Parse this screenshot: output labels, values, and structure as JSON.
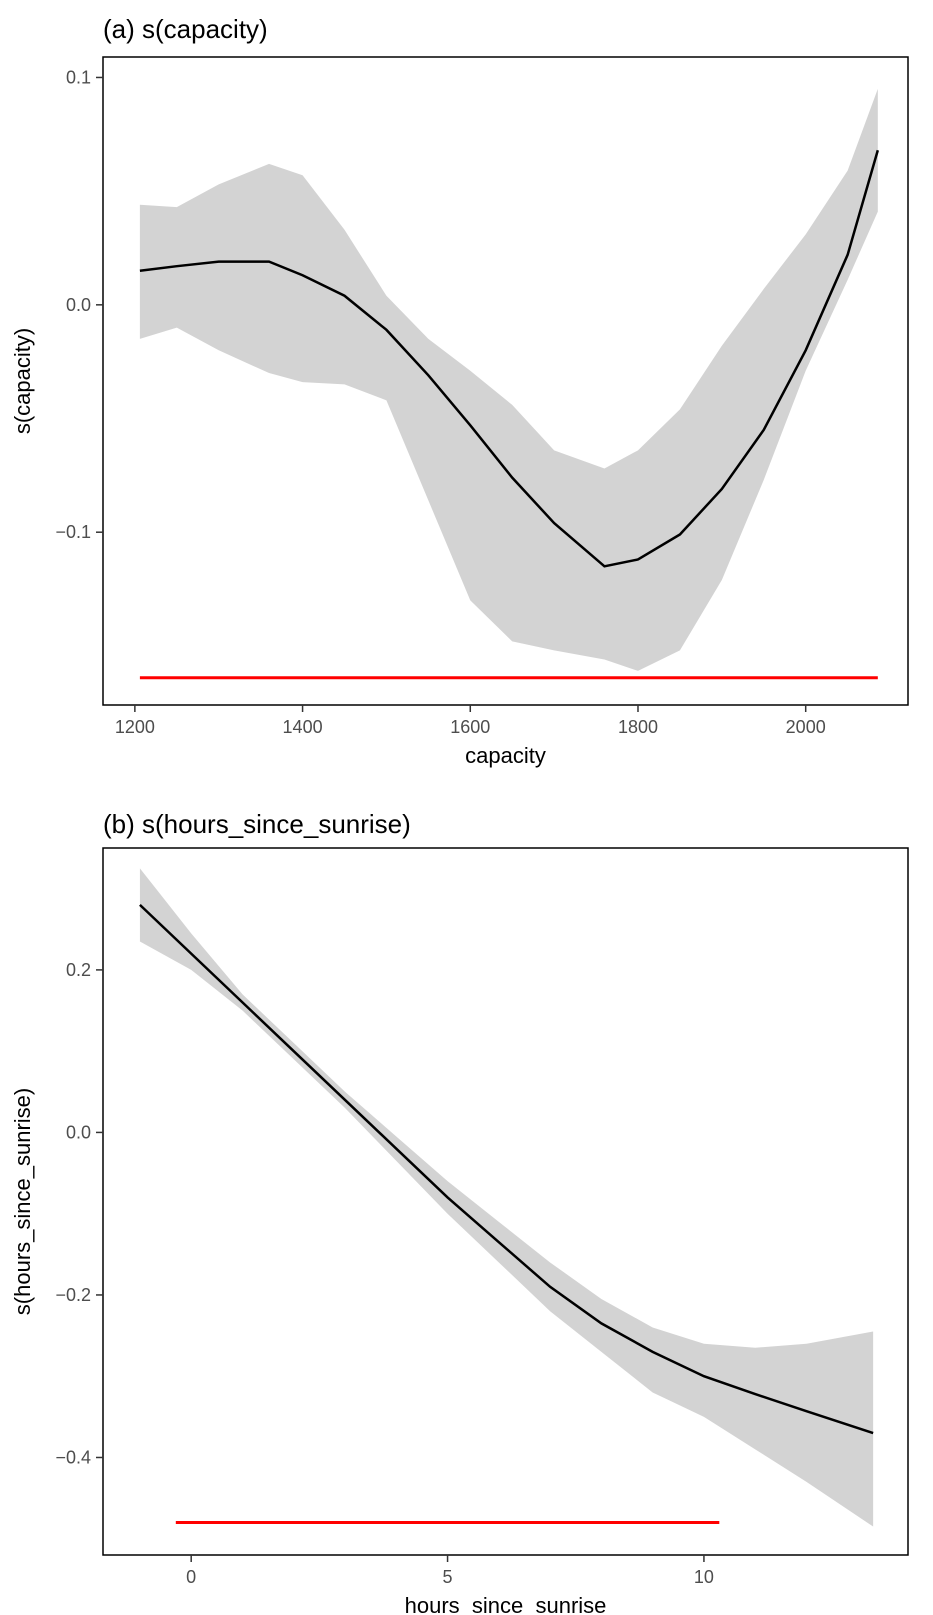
{
  "chart_data": [
    {
      "type": "line",
      "title": "(a) s(capacity)",
      "x_label": "capacity",
      "y_label": "s(capacity)",
      "x": [
        1206,
        1250,
        1300,
        1360,
        1400,
        1450,
        1500,
        1550,
        1600,
        1650,
        1700,
        1760,
        1800,
        1850,
        1900,
        1950,
        2000,
        2050,
        2086
      ],
      "values": [
        0.015,
        0.017,
        0.019,
        0.019,
        0.013,
        0.004,
        -0.011,
        -0.031,
        -0.053,
        -0.076,
        -0.096,
        -0.115,
        -0.112,
        -0.101,
        -0.081,
        -0.055,
        -0.02,
        0.022,
        0.068
      ],
      "color": "#000000",
      "band": {
        "upper": [
          0.044,
          0.043,
          0.053,
          0.062,
          0.057,
          0.033,
          0.004,
          -0.015,
          -0.029,
          -0.044,
          -0.064,
          -0.072,
          -0.064,
          -0.046,
          -0.018,
          0.007,
          0.031,
          0.059,
          0.095
        ],
        "lower": [
          -0.015,
          -0.01,
          -0.02,
          -0.03,
          -0.034,
          -0.035,
          -0.042,
          -0.086,
          -0.13,
          -0.148,
          -0.152,
          -0.156,
          -0.161,
          -0.152,
          -0.121,
          -0.077,
          -0.029,
          0.011,
          0.041
        ],
        "color": "#d3d3d3"
      },
      "segment": {
        "x": [
          1206,
          2086
        ],
        "y": -0.164,
        "color": "#ff0000"
      },
      "xlim": [
        1162,
        2122
      ],
      "ylim": [
        -0.176,
        0.109
      ],
      "xticks": [
        1200,
        1400,
        1600,
        1800,
        2000
      ],
      "yticks": [
        {
          "value": -0.1,
          "label": "−0.1"
        },
        {
          "value": 0,
          "label": "0.0"
        },
        0.1
      ]
    },
    {
      "type": "line",
      "title": "(b) s(hours_since_sunrise)",
      "x_label": "hours_since_sunrise",
      "y_label": "s(hours_since_sunrise)",
      "x": [
        -1,
        0,
        1,
        2,
        3,
        4,
        5,
        6,
        7,
        8,
        9,
        10,
        11,
        12,
        13.3
      ],
      "values": [
        0.28,
        0.22,
        0.16,
        0.1,
        0.04,
        -0.02,
        -0.08,
        -0.135,
        -0.19,
        -0.235,
        -0.27,
        -0.3,
        -0.322,
        -0.343,
        -0.37
      ],
      "color": "#000000",
      "band": {
        "upper": [
          0.325,
          0.245,
          0.17,
          0.11,
          0.05,
          -0.005,
          -0.06,
          -0.11,
          -0.16,
          -0.205,
          -0.24,
          -0.26,
          -0.265,
          -0.26,
          -0.245
        ],
        "lower": [
          0.235,
          0.2,
          0.15,
          0.09,
          0.03,
          -0.035,
          -0.1,
          -0.16,
          -0.22,
          -0.27,
          -0.32,
          -0.35,
          -0.39,
          -0.43,
          -0.485
        ],
        "color": "#d3d3d3"
      },
      "segment": {
        "x": [
          -0.3,
          10.3
        ],
        "y": -0.48,
        "color": "#ff0000"
      },
      "xlim": [
        -1.72,
        13.98
      ],
      "ylim": [
        -0.52,
        0.35
      ],
      "xticks": [
        0,
        5,
        10
      ],
      "yticks": [
        {
          "value": -0.4,
          "label": "−0.4"
        },
        {
          "value": -0.2,
          "label": "−0.2"
        },
        {
          "value": 0,
          "label": "0.0"
        },
        0.2
      ]
    }
  ]
}
